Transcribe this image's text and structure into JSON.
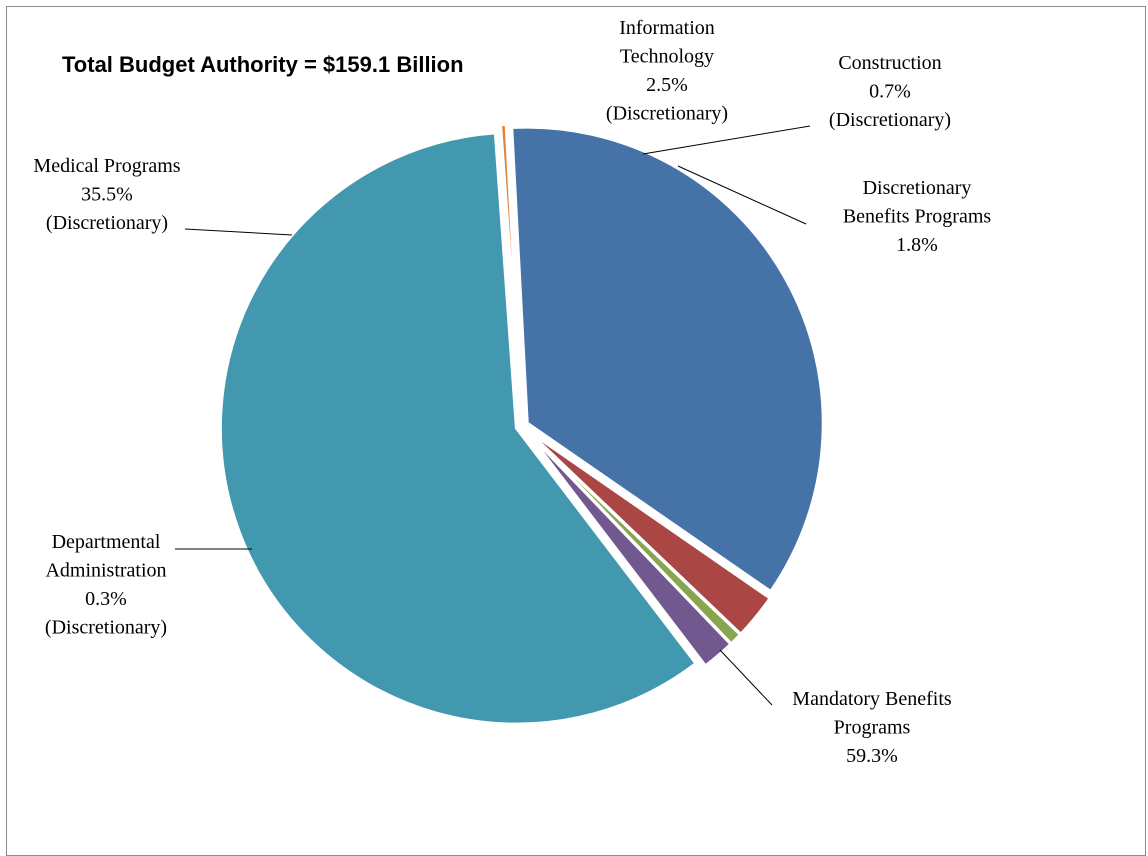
{
  "chart_data": {
    "type": "pie",
    "title": "Total Budget Authority = $159.1 Billion",
    "slices": [
      {
        "name": "Medical Programs",
        "value": 35.5,
        "label_lines": [
          "Medical Programs",
          "35.5%",
          "(Discretionary)"
        ],
        "color": "#4572a7"
      },
      {
        "name": "Information Technology",
        "value": 2.5,
        "label_lines": [
          "Information",
          "Technology",
          "2.5%",
          "(Discretionary)"
        ],
        "color": "#aa4643"
      },
      {
        "name": "Construction",
        "value": 0.7,
        "label_lines": [
          "Construction",
          "0.7%",
          "(Discretionary)"
        ],
        "color": "#89a54e"
      },
      {
        "name": "Discretionary Benefits Programs",
        "value": 1.8,
        "label_lines": [
          "Discretionary",
          "Benefits Programs",
          "1.8%"
        ],
        "color": "#71588f"
      },
      {
        "name": "Mandatory Benefits Programs",
        "value": 59.3,
        "label_lines": [
          "Mandatory Benefits",
          "Programs",
          "59.3%"
        ],
        "color": "#4198af"
      },
      {
        "name": "Departmental Administration",
        "value": 0.3,
        "label_lines": [
          "Departmental",
          "Administration",
          "0.3%",
          "(Discretionary)"
        ],
        "color": "#db843d"
      }
    ]
  }
}
